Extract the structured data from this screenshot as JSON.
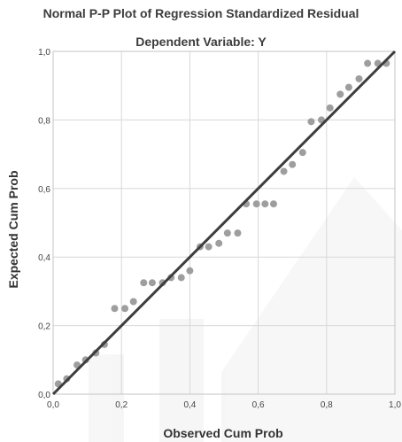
{
  "chart_data": {
    "type": "scatter",
    "title": "Normal P-P Plot of Regression Standardized Residual",
    "subtitle": "Dependent Variable: Y",
    "xlabel": "Observed Cum Prob",
    "ylabel": "Expected Cum Prob",
    "xlim": [
      0,
      1
    ],
    "ylim": [
      0,
      1
    ],
    "x_ticks": [
      0,
      0.2,
      0.4,
      0.6,
      0.8,
      1.0
    ],
    "y_ticks": [
      0,
      0.2,
      0.4,
      0.6,
      0.8,
      1.0
    ],
    "x_tick_labels": [
      "0,0",
      "0,2",
      "0,4",
      "0,6",
      "0,8",
      "1,0"
    ],
    "y_tick_labels": [
      "0,0",
      "0,2",
      "0,4",
      "0,6",
      "0,8",
      "1,0"
    ],
    "grid": true,
    "reference_line": {
      "from": [
        0,
        0
      ],
      "to": [
        1,
        1
      ]
    },
    "points": [
      {
        "x": 0.015,
        "y": 0.03
      },
      {
        "x": 0.04,
        "y": 0.045
      },
      {
        "x": 0.07,
        "y": 0.085
      },
      {
        "x": 0.095,
        "y": 0.1
      },
      {
        "x": 0.125,
        "y": 0.12
      },
      {
        "x": 0.15,
        "y": 0.145
      },
      {
        "x": 0.18,
        "y": 0.25
      },
      {
        "x": 0.21,
        "y": 0.25
      },
      {
        "x": 0.235,
        "y": 0.27
      },
      {
        "x": 0.265,
        "y": 0.325
      },
      {
        "x": 0.29,
        "y": 0.325
      },
      {
        "x": 0.32,
        "y": 0.325
      },
      {
        "x": 0.345,
        "y": 0.34
      },
      {
        "x": 0.375,
        "y": 0.34
      },
      {
        "x": 0.4,
        "y": 0.36
      },
      {
        "x": 0.43,
        "y": 0.43
      },
      {
        "x": 0.455,
        "y": 0.43
      },
      {
        "x": 0.485,
        "y": 0.44
      },
      {
        "x": 0.51,
        "y": 0.47
      },
      {
        "x": 0.54,
        "y": 0.47
      },
      {
        "x": 0.565,
        "y": 0.555
      },
      {
        "x": 0.595,
        "y": 0.555
      },
      {
        "x": 0.62,
        "y": 0.555
      },
      {
        "x": 0.645,
        "y": 0.555
      },
      {
        "x": 0.675,
        "y": 0.65
      },
      {
        "x": 0.7,
        "y": 0.67
      },
      {
        "x": 0.73,
        "y": 0.705
      },
      {
        "x": 0.755,
        "y": 0.795
      },
      {
        "x": 0.785,
        "y": 0.8
      },
      {
        "x": 0.81,
        "y": 0.835
      },
      {
        "x": 0.84,
        "y": 0.875
      },
      {
        "x": 0.865,
        "y": 0.895
      },
      {
        "x": 0.895,
        "y": 0.92
      },
      {
        "x": 0.92,
        "y": 0.965
      },
      {
        "x": 0.95,
        "y": 0.965
      },
      {
        "x": 0.975,
        "y": 0.965
      }
    ],
    "colors": {
      "points": "#9e9e9e",
      "line": "#3d3d3d",
      "grid": "#d8d8d8",
      "frame": "#c4c4c4"
    }
  }
}
